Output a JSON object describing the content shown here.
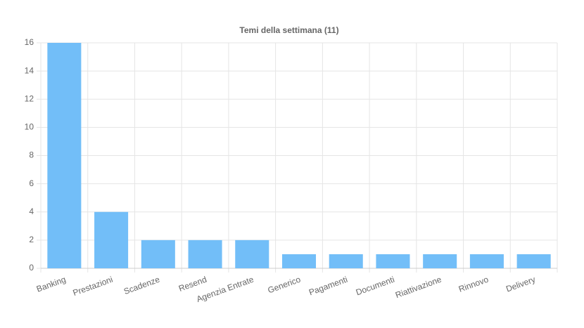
{
  "chart_data": {
    "type": "bar",
    "title": "Temi della settimana (11)",
    "categories": [
      "Banking",
      "Prestazioni",
      "Scadenze",
      "Resend",
      "Agenzia Entrate",
      "Generico",
      "Pagamenti",
      "Documenti",
      "Riattivazione",
      "Rinnovo",
      "Delivery"
    ],
    "values": [
      16,
      4,
      2,
      2,
      2,
      1,
      1,
      1,
      1,
      1,
      1
    ],
    "color": "#72bef8",
    "ylim": [
      0,
      16
    ],
    "yticks": [
      0,
      2,
      4,
      6,
      8,
      10,
      12,
      14,
      16
    ],
    "grid": true
  }
}
